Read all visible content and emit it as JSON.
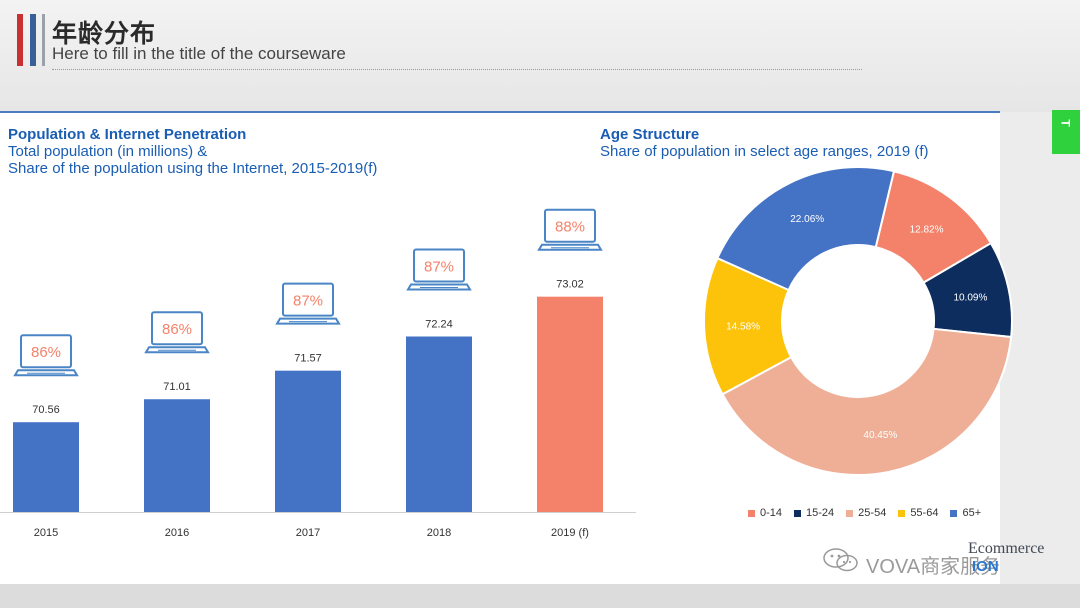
{
  "slide": {
    "title": "年龄分布",
    "subtitle": "Here to fill in the title of the courseware",
    "side_tab": "T"
  },
  "colors": {
    "bar_blue": "#4472c4",
    "bar_highlight": "#f4826a",
    "laptop_stroke": "#4a86c5",
    "heading_blue": "#1a5db3",
    "accent_red": "#c8312f",
    "accent_blue": "#3a5e96"
  },
  "watermark": {
    "text": "VOVA商家服务",
    "brand_line1": "Ecommerce",
    "brand_line2": "ION",
    "icon": "wechat-icon"
  },
  "chart_data": [
    {
      "type": "bar",
      "title": "Population & Internet Penetration",
      "subtitle_lines": [
        "Total population (in millions) &",
        "Share of the population using the Internet, 2015-2019(f)"
      ],
      "categories": [
        "2015",
        "2016",
        "2017",
        "2018",
        "2019 (f)"
      ],
      "values": [
        70.56,
        71.01,
        71.57,
        72.24,
        73.02
      ],
      "value_labels": [
        "70.56",
        "71.01",
        "71.57",
        "72.24",
        "73.02"
      ],
      "internet_share": [
        "86%",
        "86%",
        "87%",
        "87%",
        "88%"
      ],
      "highlight_index": 4,
      "annotation_icon": "laptop-icon",
      "ylim": [
        68.8,
        73.7
      ],
      "grid": false
    },
    {
      "type": "pie",
      "title": "Age Structure",
      "subtitle": "Share of population in select age ranges, 2019 (f)",
      "donut": true,
      "labels": [
        "0-14",
        "15-24",
        "25-54",
        "55-64",
        "65+"
      ],
      "values": [
        12.82,
        10.09,
        40.45,
        14.58,
        22.06
      ],
      "value_labels": [
        "12.82%",
        "10.09%",
        "40.45%",
        "14.58%",
        "22.06%"
      ],
      "colors": [
        "#f4826a",
        "#0d2d5e",
        "#efae96",
        "#fdc20a",
        "#4472c4"
      ],
      "legend_position": "bottom"
    }
  ]
}
